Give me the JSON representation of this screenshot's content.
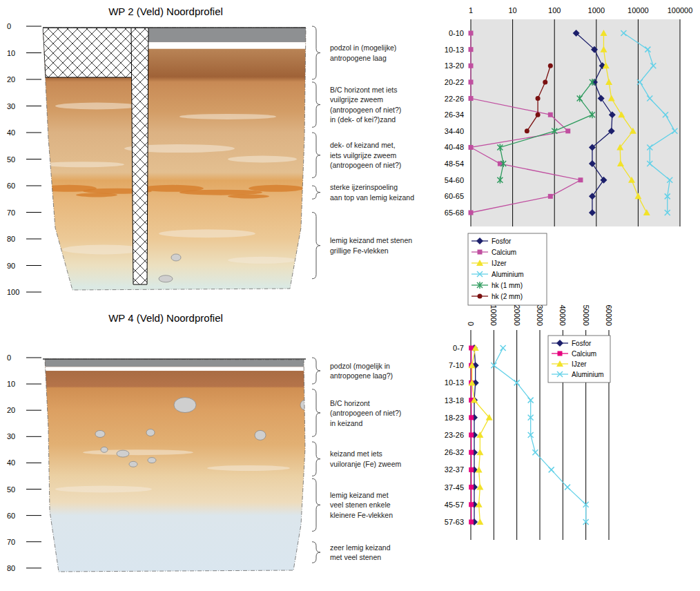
{
  "chart_data": [
    {
      "type": "line",
      "orientation": "horizontal",
      "log": "x",
      "grid": true,
      "legend": "bottom",
      "categories": [
        "0-10",
        "10-13",
        "13-20",
        "20-22",
        "22-26",
        "26-34",
        "34-40",
        "40-48",
        "48-54",
        "54-60",
        "60-65",
        "65-68"
      ],
      "xlim": [
        1,
        100000
      ],
      "xticks": [
        1,
        10,
        100,
        1000,
        10000,
        100000
      ],
      "series": [
        {
          "name": "Fosfor",
          "color": "#1c1f6b",
          "marker": "diamond",
          "values": [
            330,
            900,
            1400,
            900,
            1300,
            2400,
            2300,
            800,
            800,
            1500,
            800,
            800
          ]
        },
        {
          "name": "Calcium",
          "color": "#c04fa0",
          "marker": "square",
          "values": [
            1,
            1,
            1,
            1,
            1,
            80,
            210,
            1,
            5,
            420,
            80,
            1
          ]
        },
        {
          "name": "IJzer",
          "color": "#f2e22a",
          "marker": "triangle",
          "values": [
            1500,
            1500,
            1700,
            2000,
            2300,
            4000,
            7500,
            3700,
            3800,
            7000,
            10000,
            16000
          ]
        },
        {
          "name": "Aluminium",
          "color": "#63d1e8",
          "marker": "x",
          "values": [
            4500,
            17000,
            23000,
            11000,
            19000,
            45000,
            75000,
            19000,
            19000,
            57000,
            50000,
            50000
          ]
        },
        {
          "name": "hk (1 mm)",
          "color": "#2e9b5e",
          "marker": "asterisk",
          "values": [
            null,
            null,
            null,
            800,
            400,
            800,
            100,
            5,
            6,
            5,
            null,
            null
          ]
        },
        {
          "name": "hk (2 mm)",
          "color": "#7a1010",
          "marker": "circle",
          "values": [
            null,
            null,
            80,
            60,
            40,
            40,
            22,
            null,
            null,
            null,
            null,
            null
          ]
        }
      ]
    },
    {
      "type": "line",
      "orientation": "horizontal",
      "grid": true,
      "legend": "top-right",
      "categories": [
        "0-7",
        "7-10",
        "10-13",
        "13-18",
        "18-23",
        "23-26",
        "26-32",
        "32-37",
        "37-45",
        "45-57",
        "57-63"
      ],
      "xlim": [
        0,
        60000
      ],
      "xticks": [
        0,
        10000,
        20000,
        30000,
        40000,
        50000,
        60000
      ],
      "series": [
        {
          "name": "Fosfor",
          "color": "#1c1f6b",
          "marker": "diamond",
          "values": [
            1500,
            2000,
            2000,
            1500,
            1500,
            1500,
            1500,
            1500,
            1500,
            1500,
            1500
          ]
        },
        {
          "name": "Calcium",
          "color": "#e6007e",
          "marker": "square",
          "values": [
            200,
            200,
            200,
            200,
            200,
            200,
            200,
            200,
            200,
            200,
            200
          ]
        },
        {
          "name": "IJzer",
          "color": "#f2e22a",
          "marker": "triangle",
          "values": [
            2000,
            500,
            500,
            1500,
            8000,
            4000,
            4000,
            3500,
            4000,
            3500,
            4000
          ]
        },
        {
          "name": "Aluminium",
          "color": "#63d1e8",
          "marker": "x",
          "values": [
            14000,
            10000,
            20000,
            26000,
            26000,
            26000,
            28000,
            35000,
            42000,
            50000,
            50000
          ]
        }
      ]
    }
  ],
  "profiles": [
    {
      "title": "WP 2 (Veld) Noordprofiel",
      "depth_lim": [
        0,
        100
      ],
      "depth_ticks": [
        0,
        10,
        20,
        30,
        40,
        50,
        60,
        70,
        80,
        90,
        100
      ],
      "annotations": [
        {
          "lines": [
            "podzol in (mogelijke)",
            "antropogene laag"
          ],
          "depth": [
            0,
            20
          ]
        },
        {
          "lines": [
            "B/C horizont met iets",
            "vuilgrijze zweem",
            "(antropogeen of niet?)",
            "in (dek- of kei?)zand"
          ],
          "depth": [
            21,
            38
          ]
        },
        {
          "lines": [
            "dek- of keizand met,",
            "iets vuilgrijze zweem",
            "(antropogeen of niet?)"
          ],
          "depth": [
            40,
            57
          ]
        },
        {
          "lines": [
            "sterke ijzerinspoeling",
            "aan top van lemig keizand"
          ],
          "depth": [
            60,
            65
          ]
        },
        {
          "lines": [
            "lemig keizand met stenen",
            "grillige Fe-vlekken"
          ],
          "depth": [
            70,
            95
          ]
        }
      ]
    },
    {
      "title": "WP 4 (Veld) Noordprofiel",
      "depth_lim": [
        0,
        80
      ],
      "depth_ticks": [
        0,
        10,
        20,
        30,
        40,
        50,
        60,
        70,
        80
      ],
      "annotations": [
        {
          "lines": [
            "podzol (mogelijk in",
            "antropogene laag?)"
          ],
          "depth": [
            0,
            10
          ]
        },
        {
          "lines": [
            "B/C horizont",
            "(antropogeen of niet?)",
            "in keizand"
          ],
          "depth": [
            12,
            30
          ]
        },
        {
          "lines": [
            "keizand met iets",
            "vuiloranje (Fe) zweem"
          ],
          "depth": [
            32,
            45
          ]
        },
        {
          "lines": [
            "lemig keizand met",
            "veel stenen enkele",
            "kleinere Fe-vlekken"
          ],
          "depth": [
            46,
            66
          ]
        },
        {
          "lines": [
            "zeer lemig keizand",
            "met veel stenen"
          ],
          "depth": [
            70,
            78
          ]
        }
      ]
    }
  ]
}
